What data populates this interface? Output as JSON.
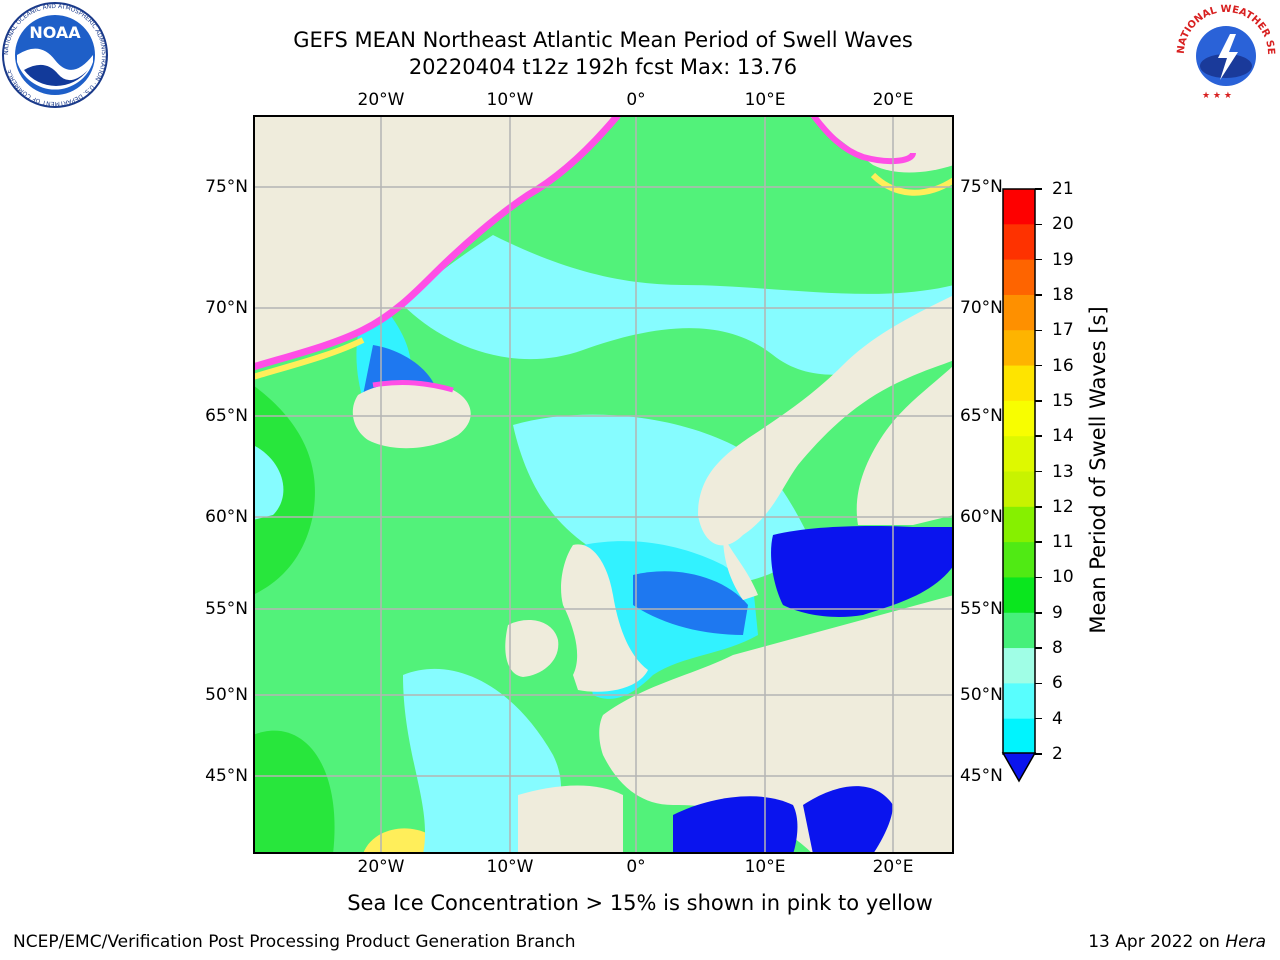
{
  "title": {
    "line1": "GEFS MEAN Northeast Atlantic Mean Period of Swell Waves",
    "line2": "20220404 t12z 192h fcst   Max: 13.76"
  },
  "map": {
    "lon_labels": [
      "20°W",
      "10°W",
      "0°",
      "10°E",
      "20°E"
    ],
    "lat_labels": [
      "75°N",
      "70°N",
      "65°N",
      "60°N",
      "55°N",
      "50°N",
      "45°N"
    ],
    "colors": {
      "land": "#efecdc",
      "ocean_green": "#52f27a",
      "ocean_green_dark": "#28e63c",
      "ocean_cyan": "#86fcff",
      "ocean_aqua": "#32f2ff",
      "ocean_blue": "#1e78f0",
      "ocean_deepblue": "#0a14ee",
      "ice_pink": "#ff4ee6",
      "ice_yellow": "#ffee5a",
      "grid": "#b4b4b4"
    }
  },
  "colorbar": {
    "label": "Mean Period of Swell Waves [s]",
    "ticks": [
      "21",
      "20",
      "19",
      "18",
      "17",
      "16",
      "15",
      "14",
      "13",
      "12",
      "11",
      "10",
      "9",
      "8",
      "6",
      "4",
      "2"
    ],
    "colors": [
      "#fe0000",
      "#fe3200",
      "#fe6400",
      "#fe9000",
      "#feb400",
      "#fee400",
      "#f8fe00",
      "#def900",
      "#c8f300",
      "#86f000",
      "#50ea14",
      "#0ae61e",
      "#46f07a",
      "#a0fee6",
      "#58fefe",
      "#00f4fe",
      "#0072fe",
      "#0000ea"
    ]
  },
  "note": "Sea Ice Concentration > 15% is shown in pink to yellow",
  "footer": {
    "left": "NCEP/EMC/Verification Post Processing Product Generation Branch",
    "date": "13 Apr 2022 on ",
    "machine": "Hera"
  },
  "logos": {
    "noaa_text": "NOAA",
    "noaa_ring": "NATIONAL OCEANIC AND ATMOSPHERIC ADMINISTRATION · U.S. DEPARTMENT OF COMMERCE",
    "nws_ring": "NATIONAL WEATHER SERVICE"
  }
}
